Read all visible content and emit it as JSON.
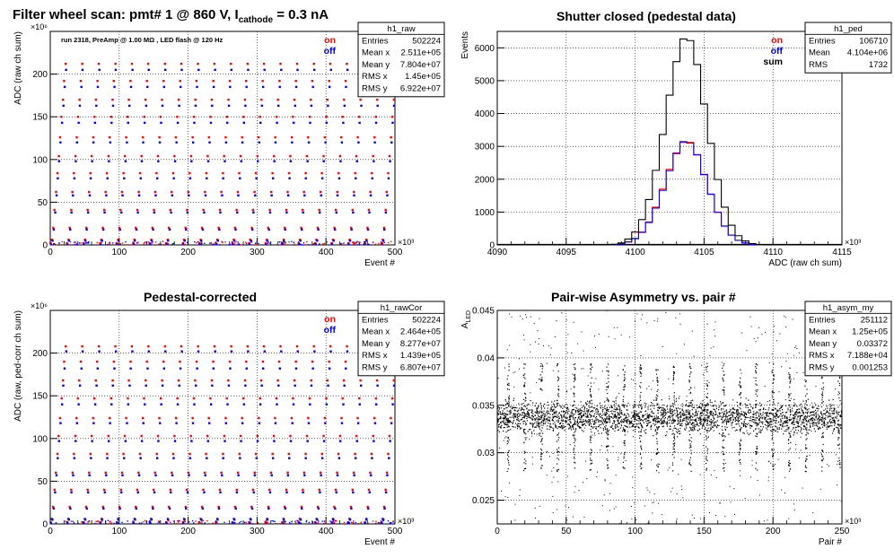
{
  "chart_data": [
    {
      "id": "raw",
      "type": "scatter",
      "title": "Filter wheel scan: pmt#   1 @   860 V, I",
      "title_sub": "cathode",
      "title_tail": " = 0.3 nA",
      "annotation": "run 2318, PreAmp @ 1.00 MΩ , LED flash @  120 Hz",
      "xlabel": "Event #",
      "ylabel": "ADC (raw ch sum)",
      "x_exponent": "×10³",
      "y_exponent": "×10⁶",
      "xlim": [
        0,
        500
      ],
      "ylim": [
        0,
        250
      ],
      "xticks": [
        0,
        100,
        200,
        300,
        400,
        500
      ],
      "yticks": [
        0,
        50,
        100,
        150,
        200
      ],
      "grid": true,
      "legend": [
        {
          "label": "on",
          "color": "#ff0000"
        },
        {
          "label": "off",
          "color": "#0000ff"
        }
      ],
      "stats": {
        "name": "h1_raw",
        "rows": [
          {
            "label": "Entries",
            "value": "502224"
          },
          {
            "label": "Mean x",
            "value": "2.511e+05"
          },
          {
            "label": "Mean y",
            "value": "7.804e+07"
          },
          {
            "label": "RMS x",
            "value": "1.45e+05"
          },
          {
            "label": "RMS y",
            "value": "6.922e+07"
          }
        ]
      },
      "levels": {
        "on": [
          2,
          6,
          20,
          41,
          62,
          84,
          104,
          126,
          150,
          170,
          192,
          212
        ],
        "off": [
          1,
          5,
          18,
          38,
          58,
          78,
          98,
          120,
          143,
          163,
          185,
          205
        ]
      },
      "step_period": 24
    },
    {
      "id": "ped",
      "type": "line",
      "title": "Shutter closed (pedestal data)",
      "xlabel": "ADC (raw ch sum)",
      "ylabel": "Events",
      "x_exponent": "×10³",
      "xlim": [
        4090,
        4115
      ],
      "ylim": [
        0,
        6500
      ],
      "xticks": [
        4090,
        4095,
        4100,
        4105,
        4110,
        4115
      ],
      "yticks": [
        0,
        1000,
        2000,
        3000,
        4000,
        5000,
        6000
      ],
      "grid": true,
      "legend": [
        {
          "label": "on",
          "color": "#ff0000"
        },
        {
          "label": "off",
          "color": "#0000ff"
        },
        {
          "label": "sum",
          "color": "#000000"
        }
      ],
      "stats": {
        "name": "h1_ped",
        "rows": [
          {
            "label": "Entries",
            "value": "106710"
          },
          {
            "label": "Mean",
            "value": "4.104e+06"
          },
          {
            "label": "RMS",
            "value": "1732"
          }
        ]
      },
      "x": [
        4098.5,
        4099.0,
        4099.5,
        4100.0,
        4100.5,
        4101.0,
        4101.5,
        4102.0,
        4102.5,
        4103.0,
        4103.5,
        4104.0,
        4104.5,
        4105.0,
        4105.5,
        4106.0,
        4106.5,
        4107.0,
        4107.5,
        4108.0,
        4108.5,
        4109.0
      ],
      "series": [
        {
          "name": "on",
          "color": "#ff0000",
          "values": [
            10,
            30,
            90,
            200,
            390,
            700,
            1150,
            1700,
            2300,
            2800,
            3150,
            3120,
            2750,
            2150,
            1550,
            1000,
            580,
            300,
            140,
            60,
            20,
            5
          ]
        },
        {
          "name": "off",
          "color": "#0000ff",
          "values": [
            10,
            30,
            90,
            190,
            380,
            680,
            1120,
            1660,
            2260,
            2780,
            3120,
            3100,
            2740,
            2140,
            1540,
            990,
            570,
            300,
            140,
            60,
            20,
            5
          ]
        },
        {
          "name": "sum",
          "color": "#000000",
          "values": [
            20,
            60,
            180,
            390,
            770,
            1380,
            2270,
            3360,
            4560,
            5580,
            6270,
            6220,
            5490,
            4290,
            3090,
            1990,
            1150,
            600,
            280,
            120,
            40,
            10
          ]
        }
      ]
    },
    {
      "id": "cor",
      "type": "scatter",
      "title": "Pedestal-corrected",
      "xlabel": "Event #",
      "ylabel": "ADC (raw, ped-corr ch sum)",
      "x_exponent": "×10³",
      "y_exponent": "×10⁶",
      "xlim": [
        0,
        500
      ],
      "ylim": [
        0,
        250
      ],
      "xticks": [
        0,
        100,
        200,
        300,
        400,
        500
      ],
      "yticks": [
        0,
        50,
        100,
        150,
        200
      ],
      "grid": true,
      "legend": [
        {
          "label": "on",
          "color": "#ff0000"
        },
        {
          "label": "off",
          "color": "#0000ff"
        }
      ],
      "stats": {
        "name": "h1_rawCor",
        "rows": [
          {
            "label": "Entries",
            "value": "502224"
          },
          {
            "label": "Mean x",
            "value": "2.464e+05"
          },
          {
            "label": "Mean y",
            "value": "8.277e+07"
          },
          {
            "label": "RMS x",
            "value": "1.439e+05"
          },
          {
            "label": "RMS y",
            "value": "6.807e+07"
          }
        ]
      },
      "levels": {
        "on": [
          2,
          6,
          20,
          40,
          60,
          82,
          103,
          124,
          147,
          168,
          190,
          208
        ],
        "off": [
          1,
          5,
          18,
          37,
          57,
          77,
          97,
          118,
          140,
          162,
          182,
          202
        ]
      },
      "step_period": 24
    },
    {
      "id": "asym",
      "type": "scatter",
      "title": "Pair-wise Asymmetry vs. pair #",
      "xlabel": "Pair #",
      "ylabel": "A",
      "ylabel_sub": "LED",
      "x_exponent": "×10³",
      "xlim": [
        0,
        250
      ],
      "ylim": [
        0.0225,
        0.045
      ],
      "xticks": [
        0,
        50,
        100,
        150,
        200,
        250
      ],
      "yticks": [
        0.025,
        0.03,
        0.035,
        0.04,
        0.045
      ],
      "ytick_labels": [
        "0.025",
        "0.03",
        "0.035",
        "0.04",
        "0.045"
      ],
      "grid": true,
      "stats": {
        "name": "h1_asym_my",
        "rows": [
          {
            "label": "Entries",
            "value": "251112"
          },
          {
            "label": "Mean x",
            "value": "1.25e+05"
          },
          {
            "label": "Mean y",
            "value": "0.03372"
          },
          {
            "label": "RMS x",
            "value": "7.188e+04"
          },
          {
            "label": "RMS y",
            "value": "0.001253"
          }
        ]
      },
      "band_center": 0.0337,
      "band_halfwidth": 0.0012,
      "spike_period": 12
    }
  ]
}
